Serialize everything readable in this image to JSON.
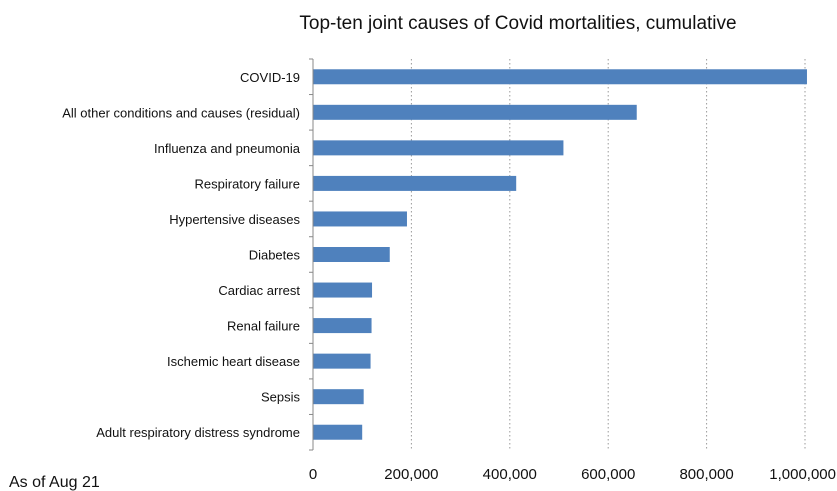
{
  "chart_data": {
    "type": "bar",
    "orientation": "horizontal",
    "title": "Top-ten joint causes of Covid mortalities, cumulative",
    "note": "As of Aug 21",
    "categories": [
      "COVID-19",
      "All other conditions and causes (residual)",
      "Influenza and pneumonia",
      "Respiratory failure",
      "Hypertensive diseases",
      "Diabetes",
      "Cardiac arrest",
      "Renal failure",
      "Ischemic heart disease",
      "Sepsis",
      "Adult respiratory distress syndrome"
    ],
    "values": [
      1004000,
      658000,
      509000,
      413000,
      191000,
      156000,
      120000,
      119000,
      117000,
      103000,
      100000
    ],
    "xlim": [
      0,
      1000000
    ],
    "xticks": [
      0,
      200000,
      400000,
      600000,
      800000,
      1000000
    ],
    "xtick_labels": [
      "0",
      "200,000",
      "400,000",
      "600,000",
      "800,000",
      "1,000,000"
    ],
    "grid": "vertical dotted",
    "legend": "none",
    "bar_color": "#4f81bd"
  }
}
